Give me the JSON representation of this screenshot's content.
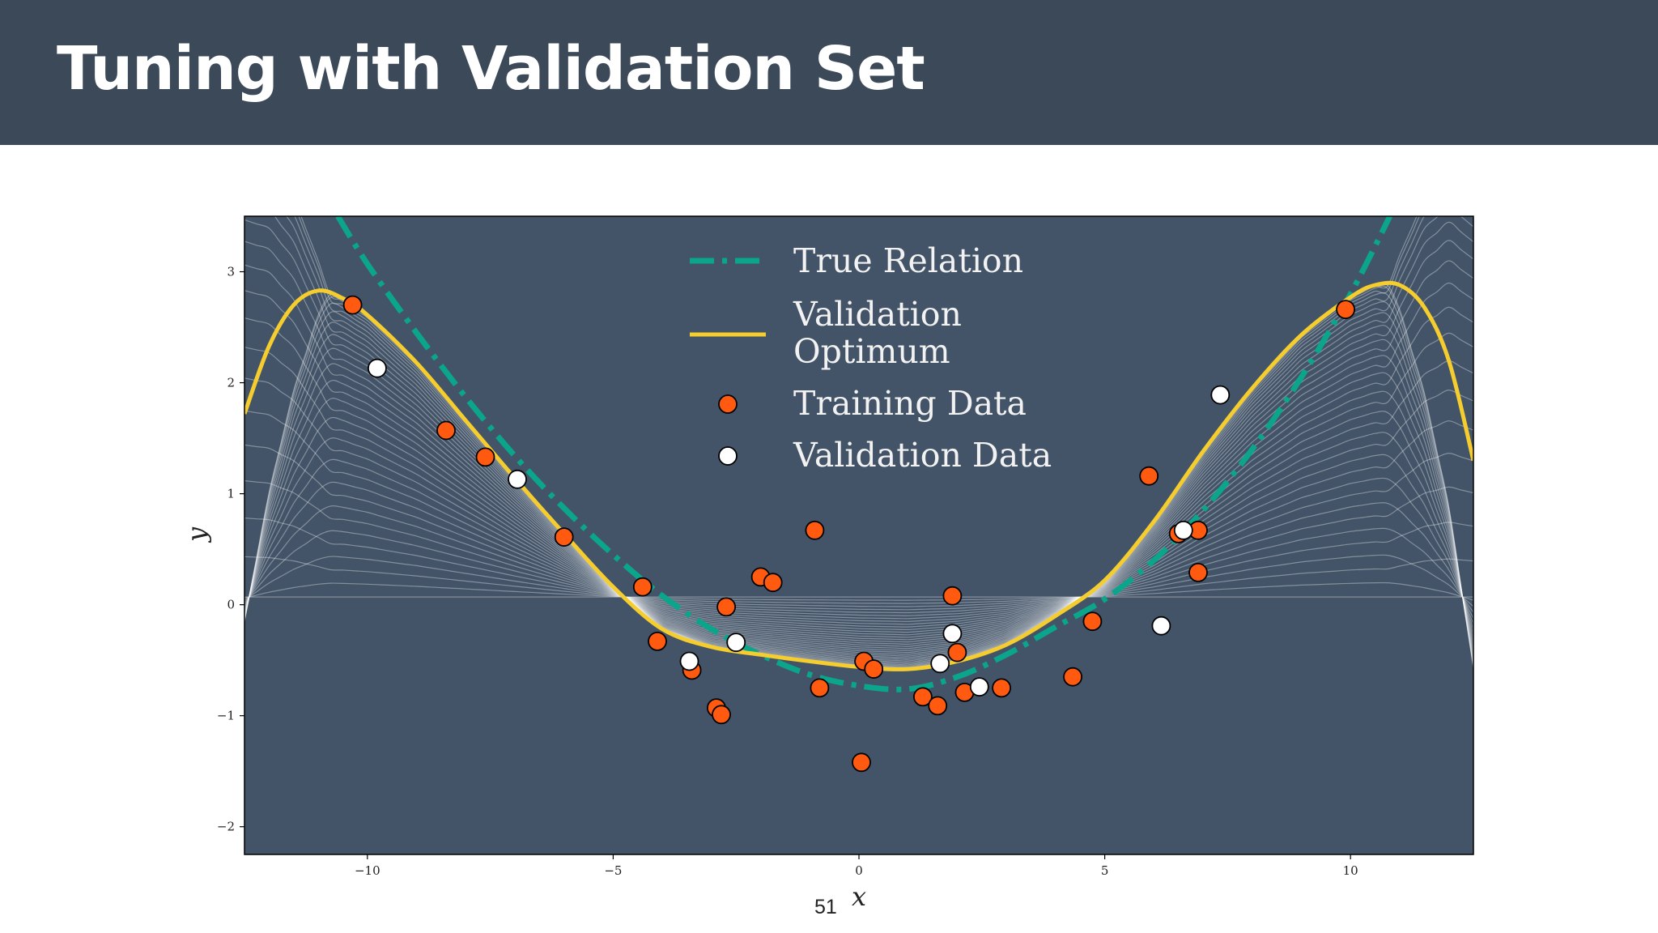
{
  "slide": {
    "title": "Tuning with Validation Set",
    "page_number": "51"
  },
  "colors": {
    "header_bg": "#3b4958",
    "plot_bg": "#435468",
    "true_relation": "#0aa58a",
    "validation_optimum": "#f5cd2e",
    "training_data": "#ff5a10",
    "validation_data": "#ffffff",
    "fits": "#ffffff"
  },
  "chart_data": {
    "type": "scatter",
    "xlabel": "x",
    "ylabel": "y",
    "xlim": [
      -12.5,
      12.5
    ],
    "ylim": [
      -2.25,
      3.5
    ],
    "xticks": [
      -10,
      -5,
      0,
      5,
      10
    ],
    "xtick_labels": [
      "−10",
      "−5",
      "0",
      "5",
      "10"
    ],
    "yticks": [
      -2,
      -1,
      0,
      1,
      2,
      3
    ],
    "ytick_labels": [
      "−2",
      "−1",
      "0",
      "1",
      "2",
      "3"
    ],
    "grid": false,
    "legend": {
      "position": "top-center",
      "entries": [
        {
          "label": "True Relation",
          "marker": "dashdot-line",
          "color": "#0aa58a"
        },
        {
          "label": "Validation Optimum",
          "label_lines": [
            "Validation",
            "Optimum"
          ],
          "marker": "line",
          "color": "#f5cd2e"
        },
        {
          "label": "Training Data",
          "marker": "circle",
          "color": "#ff5a10"
        },
        {
          "label": "Validation Data",
          "marker": "circle",
          "color": "#ffffff"
        }
      ]
    },
    "series": [
      {
        "name": "True Relation",
        "kind": "line",
        "style": "dashdot",
        "x": [
          -10.6,
          -10,
          -9,
          -8,
          -7,
          -6,
          -5,
          -4,
          -3,
          -2,
          -1,
          0,
          1,
          2,
          3,
          4,
          5,
          6,
          7,
          8,
          9,
          10,
          10.8
        ],
        "y": [
          3.5,
          3.07,
          2.45,
          1.87,
          1.34,
          0.87,
          0.45,
          0.08,
          -0.22,
          -0.45,
          -0.63,
          -0.73,
          -0.76,
          -0.65,
          -0.45,
          -0.2,
          0.05,
          0.4,
          0.85,
          1.4,
          2.05,
          2.8,
          3.5
        ]
      },
      {
        "name": "Validation Optimum",
        "kind": "line",
        "style": "solid",
        "x": [
          -12.5,
          -12,
          -11.5,
          -11,
          -10.5,
          -10,
          -9,
          -8,
          -7,
          -6,
          -5,
          -4,
          -3,
          -2,
          -1,
          0,
          1,
          2,
          3,
          4,
          5,
          6,
          7,
          8,
          9,
          10,
          10.5,
          11,
          11.5,
          12,
          12.5
        ],
        "y": [
          1.72,
          2.33,
          2.7,
          2.83,
          2.76,
          2.61,
          2.18,
          1.66,
          1.14,
          0.64,
          0.16,
          -0.22,
          -0.38,
          -0.45,
          -0.51,
          -0.56,
          -0.58,
          -0.51,
          -0.36,
          -0.1,
          0.22,
          0.75,
          1.38,
          1.95,
          2.43,
          2.77,
          2.88,
          2.88,
          2.68,
          2.2,
          1.3
        ]
      },
      {
        "name": "Training Data",
        "kind": "points",
        "x": [
          -10.3,
          -8.4,
          -7.6,
          -6.0,
          -4.4,
          -4.1,
          -3.4,
          -2.9,
          -2.8,
          -2.7,
          -2.0,
          -1.75,
          -0.9,
          -0.8,
          0.05,
          0.1,
          0.3,
          1.3,
          1.6,
          1.9,
          2.0,
          2.15,
          2.9,
          4.35,
          4.75,
          5.9,
          6.5,
          6.9,
          6.9,
          9.9
        ],
        "y": [
          2.7,
          1.57,
          1.33,
          0.61,
          0.16,
          -0.33,
          -0.59,
          -0.93,
          -0.99,
          -0.02,
          0.25,
          0.2,
          0.67,
          -0.75,
          -1.42,
          -0.51,
          -0.58,
          -0.83,
          -0.91,
          0.08,
          -0.43,
          -0.79,
          -0.75,
          -0.65,
          -0.15,
          1.16,
          0.64,
          0.67,
          0.29,
          2.66
        ]
      },
      {
        "name": "Validation Data",
        "kind": "points",
        "x": [
          -9.8,
          -6.95,
          -3.45,
          -2.5,
          1.65,
          1.9,
          2.45,
          6.15,
          6.6,
          7.35
        ],
        "y": [
          2.13,
          1.13,
          -0.51,
          -0.34,
          -0.53,
          -0.26,
          -0.74,
          -0.19,
          0.67,
          1.89
        ]
      }
    ]
  }
}
